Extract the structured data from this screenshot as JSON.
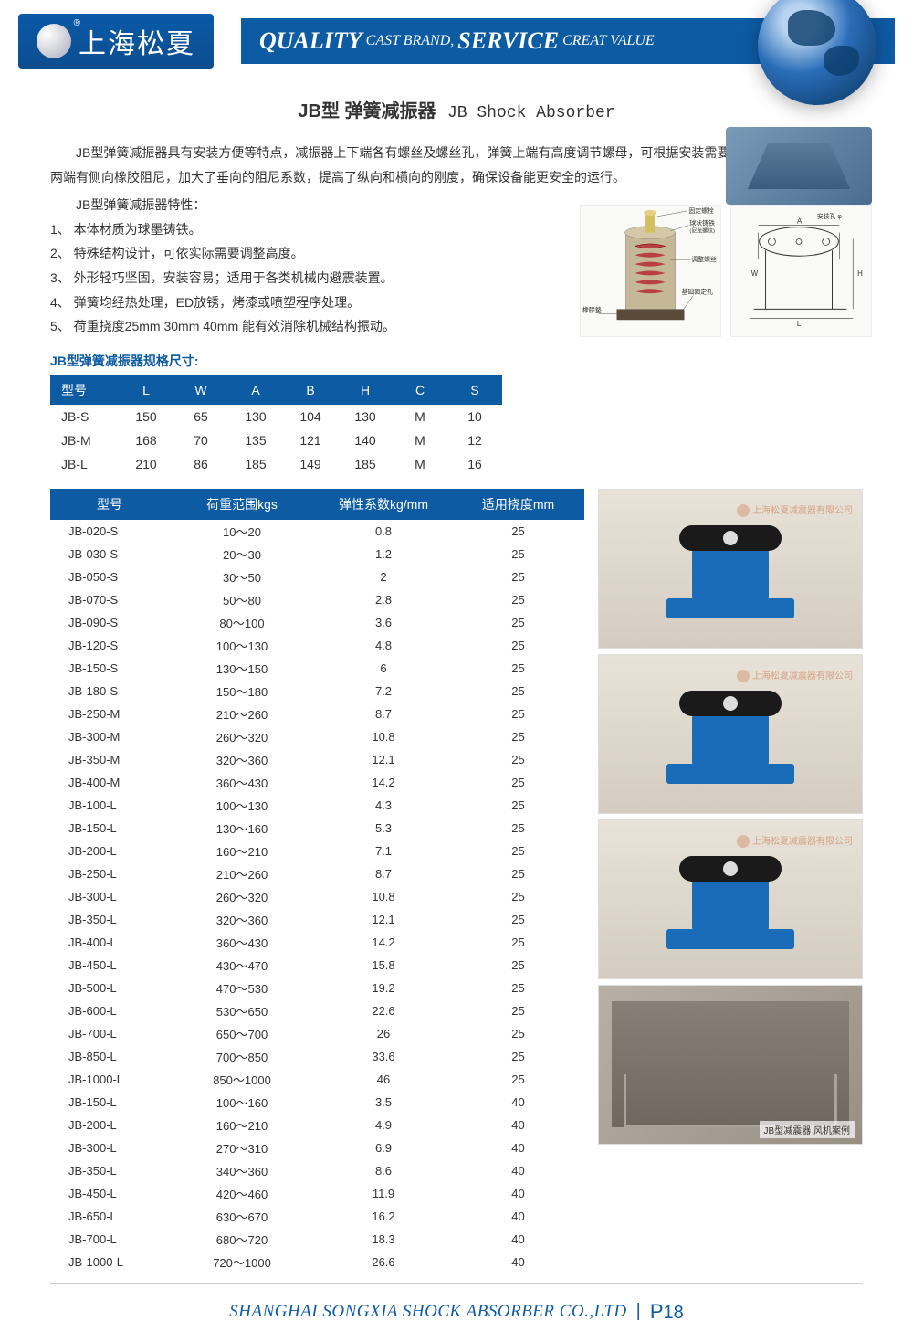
{
  "header": {
    "logo_text": "上海松夏",
    "slogan_q": "QUALITY",
    "slogan_cb": "CAST BRAND,",
    "slogan_s": "SERVICE",
    "slogan_cv": "CREAT VALUE"
  },
  "title": {
    "cn": "JB型 弹簧减振器",
    "en": "JB Shock Absorber"
  },
  "intro": "JB型弹簧减振器具有安装方便等特点，减振器上下端各有螺丝及螺丝孔，弹簧上端有高度调节螺母，可根据安装需要自由调整高度，减振器两端有侧向橡胶阻尼，加大了垂向的阻尼系数，提高了纵向和横向的刚度，确保设备能更安全的运行。",
  "feat_title": "JB型弹簧减振器特性：",
  "features": [
    "1、 本体材质为球墨铸铁。",
    "2、 特殊结构设计，可依实际需要调整高度。",
    "3、 外形轻巧坚固，安装容易；适用于各类机械内避震装置。",
    "4、 弹簧均经热处理，ED放锈，烤漆或喷塑程序处理。",
    "5、 荷重挠度25mm 30mm 40mm 能有效消除机械结构振动。"
  ],
  "diag_labels": {
    "bolt": "固定螺栓",
    "cast": "球状铸铁",
    "nylon": "(尼龙螺纹)",
    "adj": "调整螺丝",
    "hole": "基础固定孔",
    "pad": "橡膠墊",
    "anchor": "安装孔 φ"
  },
  "dim_title": "JB型弹簧减振器规格尺寸:",
  "dim_headers": [
    "型号",
    "L",
    "W",
    "A",
    "B",
    "H",
    "C",
    "S"
  ],
  "dim_rows": [
    [
      "JB-S",
      "150",
      "65",
      "130",
      "104",
      "130",
      "M",
      "10"
    ],
    [
      "JB-M",
      "168",
      "70",
      "135",
      "121",
      "140",
      "M",
      "12"
    ],
    [
      "JB-L",
      "210",
      "86",
      "185",
      "149",
      "185",
      "M",
      "16"
    ]
  ],
  "spec_headers": [
    "型号",
    "荷重范围kgs",
    "弹性系数kg/mm",
    "适用挠度mm"
  ],
  "spec_rows": [
    [
      "JB-020-S",
      "10～20",
      "0.8",
      "25"
    ],
    [
      "JB-030-S",
      "20～30",
      "1.2",
      "25"
    ],
    [
      "JB-050-S",
      "30～50",
      "2",
      "25"
    ],
    [
      "JB-070-S",
      "50～80",
      "2.8",
      "25"
    ],
    [
      "JB-090-S",
      "80～100",
      "3.6",
      "25"
    ],
    [
      "JB-120-S",
      "100～130",
      "4.8",
      "25"
    ],
    [
      "JB-150-S",
      "130～150",
      "6",
      "25"
    ],
    [
      "JB-180-S",
      "150～180",
      "7.2",
      "25"
    ],
    [
      "JB-250-M",
      "210～260",
      "8.7",
      "25"
    ],
    [
      "JB-300-M",
      "260～320",
      "10.8",
      "25"
    ],
    [
      "JB-350-M",
      "320～360",
      "12.1",
      "25"
    ],
    [
      "JB-400-M",
      "360～430",
      "14.2",
      "25"
    ],
    [
      "JB-100-L",
      "100～130",
      "4.3",
      "25"
    ],
    [
      "JB-150-L",
      "130～160",
      "5.3",
      "25"
    ],
    [
      "JB-200-L",
      "160～210",
      "7.1",
      "25"
    ],
    [
      "JB-250-L",
      "210～260",
      "8.7",
      "25"
    ],
    [
      "JB-300-L",
      "260～320",
      "10.8",
      "25"
    ],
    [
      "JB-350-L",
      "320～360",
      "12.1",
      "25"
    ],
    [
      "JB-400-L",
      "360～430",
      "14.2",
      "25"
    ],
    [
      "JB-450-L",
      "430～470",
      "15.8",
      "25"
    ],
    [
      "JB-500-L",
      "470～530",
      "19.2",
      "25"
    ],
    [
      "JB-600-L",
      "530～650",
      "22.6",
      "25"
    ],
    [
      "JB-700-L",
      "650～700",
      "26",
      "25"
    ],
    [
      "JB-850-L",
      "700～850",
      "33.6",
      "25"
    ],
    [
      "JB-1000-L",
      "850～1000",
      "46",
      "25"
    ],
    [
      "JB-150-L",
      "100～160",
      "3.5",
      "40"
    ],
    [
      "JB-200-L",
      "160～210",
      "4.9",
      "40"
    ],
    [
      "JB-300-L",
      "270～310",
      "6.9",
      "40"
    ],
    [
      "JB-350-L",
      "340～360",
      "8.6",
      "40"
    ],
    [
      "JB-450-L",
      "420～460",
      "11.9",
      "40"
    ],
    [
      "JB-650-L",
      "630～670",
      "16.2",
      "40"
    ],
    [
      "JB-700-L",
      "680～720",
      "18.3",
      "40"
    ],
    [
      "JB-1000-L",
      "720～1000",
      "26.6",
      "40"
    ]
  ],
  "watermark": "上海松夏减震器有限公司",
  "photo_caption": "JB型减震器 风机案例",
  "footer": {
    "company": "SHANGHAI SONGXIA SHOCK ABSORBER CO.,LTD",
    "page_p": "P",
    "page_n": "18"
  },
  "colors": {
    "brand": "#0d5ba3",
    "header_th": "#0d5ba3",
    "device_blue": "#1a6bb8"
  }
}
